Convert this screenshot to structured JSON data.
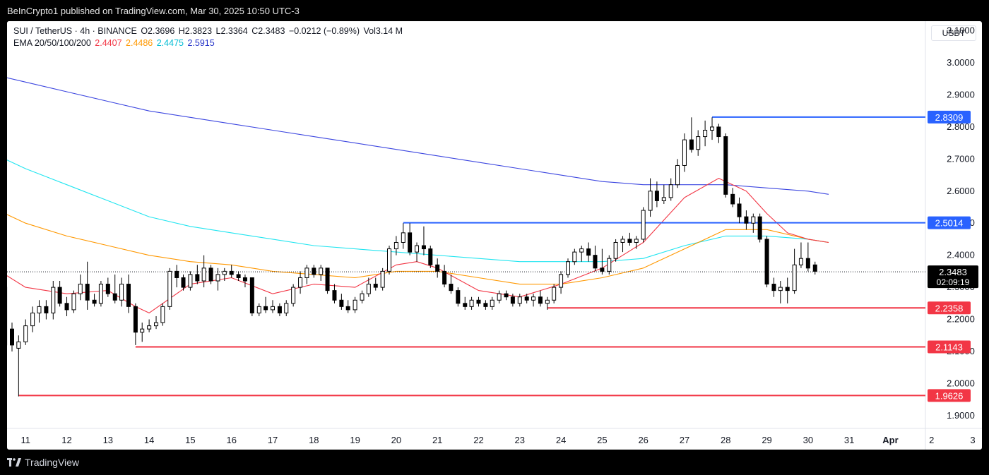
{
  "publisher": "BeInCrypto1 published on TradingView.com, Mar 30, 2025 10:50 UTC-3",
  "header": {
    "symbol": "SUI / TetherUS · 4h · BINANCE",
    "open": "O2.3696",
    "high": "H2.3823",
    "low": "L2.3364",
    "close": "C2.3483",
    "change": "−0.0212 (−0.89%)",
    "volume": "Vol3.14 M",
    "ema_label": "EMA 20/50/100/200",
    "ema_values": [
      "2.4407",
      "2.4486",
      "2.4475",
      "2.5915"
    ]
  },
  "currency": "USDT",
  "footer": {
    "brand": "TradingView"
  },
  "colors": {
    "up": "#ffffff",
    "down": "#000000",
    "ema20": "#f23645",
    "ema50": "#ff9800",
    "ema100": "#22e5f0",
    "ema200": "#3d47e0",
    "support": "#f23645",
    "resistance": "#2962ff",
    "ema_text": [
      "#f23645",
      "#ff9800",
      "#00bcd4",
      "#2432c8"
    ]
  },
  "chart_data": {
    "type": "candlestick",
    "ylim": [
      1.86,
      3.13
    ],
    "xlim_days": [
      10.55,
      32.85
    ],
    "y_ticks": [
      "3.1000",
      "3.0000",
      "2.9000",
      "2.8000",
      "2.7000",
      "2.6000",
      "2.5000",
      "2.4000",
      "2.3000",
      "2.2000",
      "2.1000",
      "2.0000",
      "1.9000"
    ],
    "x_ticks": [
      {
        "label": "11",
        "t": 11
      },
      {
        "label": "12",
        "t": 12
      },
      {
        "label": "13",
        "t": 13
      },
      {
        "label": "14",
        "t": 14
      },
      {
        "label": "15",
        "t": 15
      },
      {
        "label": "16",
        "t": 16
      },
      {
        "label": "17",
        "t": 17
      },
      {
        "label": "18",
        "t": 18
      },
      {
        "label": "19",
        "t": 19
      },
      {
        "label": "20",
        "t": 20
      },
      {
        "label": "21",
        "t": 21
      },
      {
        "label": "22",
        "t": 22
      },
      {
        "label": "23",
        "t": 23
      },
      {
        "label": "24",
        "t": 24
      },
      {
        "label": "25",
        "t": 25
      },
      {
        "label": "26",
        "t": 26
      },
      {
        "label": "27",
        "t": 27
      },
      {
        "label": "28",
        "t": 28
      },
      {
        "label": "29",
        "t": 29
      },
      {
        "label": "30",
        "t": 30
      },
      {
        "label": "31",
        "t": 31
      },
      {
        "label": "Apr",
        "t": 32
      },
      {
        "label": "2",
        "t": 33
      },
      {
        "label": "3",
        "t": 34
      }
    ],
    "levels": [
      {
        "value": 2.8309,
        "label": "2.8309",
        "kind": "resistance",
        "start_day": 27.67
      },
      {
        "value": 2.5014,
        "label": "2.5014",
        "kind": "resistance",
        "start_day": 20.17
      },
      {
        "value": 2.2358,
        "label": "2.2358",
        "kind": "support",
        "start_day": 23.67
      },
      {
        "value": 2.1143,
        "label": "2.1143",
        "kind": "support",
        "start_day": 13.67
      },
      {
        "value": 1.9626,
        "label": "1.9626",
        "kind": "support",
        "start_day": 10.83
      }
    ],
    "last_price": {
      "value": 2.3483,
      "label": "2.3483",
      "countdown": "02:09:19"
    },
    "candles": [
      [
        10.0,
        2.28,
        2.32,
        2.14,
        2.16
      ],
      [
        10.17,
        2.16,
        2.23,
        2.09,
        2.12
      ],
      [
        10.33,
        2.12,
        2.18,
        2.1,
        2.13
      ],
      [
        10.5,
        2.3,
        2.32,
        2.1,
        2.12
      ],
      [
        10.67,
        2.17,
        2.19,
        2.1,
        2.12
      ],
      [
        10.83,
        2.11,
        2.15,
        1.96,
        2.13
      ],
      [
        11.0,
        2.13,
        2.2,
        2.12,
        2.18
      ],
      [
        11.17,
        2.18,
        2.24,
        2.16,
        2.22
      ],
      [
        11.33,
        2.22,
        2.26,
        2.19,
        2.24
      ],
      [
        11.5,
        2.24,
        2.26,
        2.2,
        2.22
      ],
      [
        11.67,
        2.22,
        2.32,
        2.2,
        2.3
      ],
      [
        11.83,
        2.3,
        2.32,
        2.24,
        2.25
      ],
      [
        12.0,
        2.25,
        2.27,
        2.21,
        2.23
      ],
      [
        12.17,
        2.23,
        2.29,
        2.22,
        2.28
      ],
      [
        12.33,
        2.28,
        2.34,
        2.26,
        2.31
      ],
      [
        12.5,
        2.31,
        2.38,
        2.23,
        2.26
      ],
      [
        12.67,
        2.26,
        2.28,
        2.24,
        2.25
      ],
      [
        12.83,
        2.25,
        2.32,
        2.24,
        2.31
      ],
      [
        13.0,
        2.31,
        2.33,
        2.27,
        2.28
      ],
      [
        13.17,
        2.28,
        2.34,
        2.25,
        2.26
      ],
      [
        13.33,
        2.26,
        2.33,
        2.24,
        2.31
      ],
      [
        13.5,
        2.31,
        2.34,
        2.22,
        2.24
      ],
      [
        13.67,
        2.24,
        2.25,
        2.12,
        2.16
      ],
      [
        13.83,
        2.16,
        2.19,
        2.13,
        2.17
      ],
      [
        14.0,
        2.17,
        2.2,
        2.16,
        2.18
      ],
      [
        14.17,
        2.18,
        2.21,
        2.17,
        2.19
      ],
      [
        14.33,
        2.19,
        2.25,
        2.18,
        2.24
      ],
      [
        14.5,
        2.24,
        2.36,
        2.23,
        2.35
      ],
      [
        14.67,
        2.35,
        2.37,
        2.3,
        2.33
      ],
      [
        14.83,
        2.33,
        2.34,
        2.29,
        2.3
      ],
      [
        15.0,
        2.3,
        2.35,
        2.29,
        2.34
      ],
      [
        15.17,
        2.34,
        2.37,
        2.31,
        2.32
      ],
      [
        15.33,
        2.32,
        2.4,
        2.3,
        2.36
      ],
      [
        15.5,
        2.36,
        2.37,
        2.31,
        2.32
      ],
      [
        15.67,
        2.32,
        2.36,
        2.29,
        2.34
      ],
      [
        15.83,
        2.34,
        2.36,
        2.32,
        2.35
      ],
      [
        16.0,
        2.35,
        2.37,
        2.33,
        2.34
      ],
      [
        16.17,
        2.34,
        2.35,
        2.32,
        2.33
      ],
      [
        16.33,
        2.33,
        2.34,
        2.3,
        2.32
      ],
      [
        16.5,
        2.33,
        2.33,
        2.21,
        2.22
      ],
      [
        16.67,
        2.22,
        2.25,
        2.21,
        2.24
      ],
      [
        16.83,
        2.24,
        2.27,
        2.22,
        2.23
      ],
      [
        17.0,
        2.23,
        2.26,
        2.22,
        2.24
      ],
      [
        17.17,
        2.24,
        2.25,
        2.21,
        2.22
      ],
      [
        17.33,
        2.22,
        2.26,
        2.21,
        2.25
      ],
      [
        17.5,
        2.25,
        2.31,
        2.24,
        2.3
      ],
      [
        17.67,
        2.3,
        2.35,
        2.28,
        2.33
      ],
      [
        17.83,
        2.33,
        2.37,
        2.31,
        2.36
      ],
      [
        18.0,
        2.36,
        2.37,
        2.33,
        2.34
      ],
      [
        18.17,
        2.34,
        2.37,
        2.32,
        2.36
      ],
      [
        18.33,
        2.36,
        2.36,
        2.28,
        2.29
      ],
      [
        18.5,
        2.29,
        2.31,
        2.25,
        2.26
      ],
      [
        18.67,
        2.26,
        2.28,
        2.23,
        2.24
      ],
      [
        18.83,
        2.24,
        2.26,
        2.22,
        2.23
      ],
      [
        19.0,
        2.23,
        2.27,
        2.22,
        2.26
      ],
      [
        19.17,
        2.26,
        2.29,
        2.25,
        2.28
      ],
      [
        19.33,
        2.28,
        2.33,
        2.27,
        2.31
      ],
      [
        19.5,
        2.31,
        2.33,
        2.29,
        2.3
      ],
      [
        19.67,
        2.3,
        2.36,
        2.29,
        2.35
      ],
      [
        19.83,
        2.35,
        2.43,
        2.34,
        2.42
      ],
      [
        20.0,
        2.42,
        2.46,
        2.4,
        2.44
      ],
      [
        20.17,
        2.44,
        2.5,
        2.42,
        2.47
      ],
      [
        20.33,
        2.47,
        2.5,
        2.4,
        2.41
      ],
      [
        20.5,
        2.41,
        2.44,
        2.38,
        2.43
      ],
      [
        20.67,
        2.43,
        2.49,
        2.4,
        2.42
      ],
      [
        20.83,
        2.42,
        2.43,
        2.36,
        2.37
      ],
      [
        21.0,
        2.37,
        2.39,
        2.33,
        2.35
      ],
      [
        21.17,
        2.35,
        2.37,
        2.3,
        2.31
      ],
      [
        21.33,
        2.31,
        2.34,
        2.28,
        2.29
      ],
      [
        21.5,
        2.29,
        2.3,
        2.24,
        2.25
      ],
      [
        21.67,
        2.25,
        2.27,
        2.23,
        2.24
      ],
      [
        21.83,
        2.24,
        2.27,
        2.23,
        2.26
      ],
      [
        22.0,
        2.26,
        2.27,
        2.24,
        2.25
      ],
      [
        22.17,
        2.25,
        2.26,
        2.23,
        2.24
      ],
      [
        22.33,
        2.24,
        2.27,
        2.23,
        2.26
      ],
      [
        22.5,
        2.26,
        2.29,
        2.25,
        2.28
      ],
      [
        22.67,
        2.28,
        2.29,
        2.26,
        2.27
      ],
      [
        22.83,
        2.27,
        2.28,
        2.24,
        2.25
      ],
      [
        23.0,
        2.25,
        2.28,
        2.24,
        2.27
      ],
      [
        23.17,
        2.27,
        2.28,
        2.25,
        2.26
      ],
      [
        23.33,
        2.26,
        2.28,
        2.24,
        2.27
      ],
      [
        23.5,
        2.27,
        2.29,
        2.24,
        2.25
      ],
      [
        23.67,
        2.25,
        2.27,
        2.23,
        2.26
      ],
      [
        23.83,
        2.26,
        2.31,
        2.25,
        2.3
      ],
      [
        24.0,
        2.3,
        2.35,
        2.28,
        2.34
      ],
      [
        24.17,
        2.34,
        2.39,
        2.33,
        2.38
      ],
      [
        24.33,
        2.38,
        2.42,
        2.37,
        2.41
      ],
      [
        24.5,
        2.41,
        2.43,
        2.38,
        2.42
      ],
      [
        24.67,
        2.42,
        2.44,
        2.38,
        2.4
      ],
      [
        24.83,
        2.4,
        2.43,
        2.35,
        2.36
      ],
      [
        25.0,
        2.36,
        2.42,
        2.34,
        2.35
      ],
      [
        25.17,
        2.35,
        2.4,
        2.34,
        2.39
      ],
      [
        25.33,
        2.39,
        2.45,
        2.38,
        2.44
      ],
      [
        25.5,
        2.44,
        2.46,
        2.41,
        2.45
      ],
      [
        25.67,
        2.45,
        2.47,
        2.43,
        2.44
      ],
      [
        25.83,
        2.44,
        2.46,
        2.42,
        2.45
      ],
      [
        26.0,
        2.45,
        2.55,
        2.44,
        2.54
      ],
      [
        26.17,
        2.54,
        2.64,
        2.52,
        2.6
      ],
      [
        26.33,
        2.6,
        2.63,
        2.55,
        2.57
      ],
      [
        26.5,
        2.57,
        2.62,
        2.56,
        2.58
      ],
      [
        26.67,
        2.58,
        2.64,
        2.57,
        2.62
      ],
      [
        26.83,
        2.62,
        2.7,
        2.61,
        2.68
      ],
      [
        27.0,
        2.68,
        2.78,
        2.66,
        2.76
      ],
      [
        27.17,
        2.76,
        2.83,
        2.72,
        2.73
      ],
      [
        27.33,
        2.73,
        2.79,
        2.71,
        2.77
      ],
      [
        27.5,
        2.77,
        2.82,
        2.74,
        2.79
      ],
      [
        27.67,
        2.79,
        2.83,
        2.76,
        2.8
      ],
      [
        27.83,
        2.8,
        2.81,
        2.75,
        2.77
      ],
      [
        28.0,
        2.77,
        2.78,
        2.58,
        2.59
      ],
      [
        28.17,
        2.59,
        2.61,
        2.55,
        2.56
      ],
      [
        28.33,
        2.56,
        2.58,
        2.5,
        2.52
      ],
      [
        28.5,
        2.52,
        2.54,
        2.48,
        2.5
      ],
      [
        28.67,
        2.5,
        2.53,
        2.47,
        2.52
      ],
      [
        28.83,
        2.52,
        2.53,
        2.44,
        2.45
      ],
      [
        29.0,
        2.45,
        2.46,
        2.3,
        2.31
      ],
      [
        29.17,
        2.31,
        2.33,
        2.27,
        2.29
      ],
      [
        29.33,
        2.29,
        2.32,
        2.25,
        2.3
      ],
      [
        29.5,
        2.3,
        2.33,
        2.25,
        2.29
      ],
      [
        29.67,
        2.29,
        2.42,
        2.28,
        2.37
      ],
      [
        29.83,
        2.37,
        2.44,
        2.36,
        2.39
      ],
      [
        30.0,
        2.39,
        2.44,
        2.35,
        2.36
      ],
      [
        30.17,
        2.37,
        2.38,
        2.34,
        2.35
      ]
    ],
    "ema200": [
      [
        10.0,
        2.97
      ],
      [
        11.0,
        2.94
      ],
      [
        12.0,
        2.91
      ],
      [
        13.0,
        2.88
      ],
      [
        14.0,
        2.85
      ],
      [
        15.0,
        2.83
      ],
      [
        16.0,
        2.81
      ],
      [
        17.0,
        2.79
      ],
      [
        18.0,
        2.77
      ],
      [
        19.0,
        2.75
      ],
      [
        20.0,
        2.73
      ],
      [
        21.0,
        2.71
      ],
      [
        22.0,
        2.69
      ],
      [
        23.0,
        2.67
      ],
      [
        24.0,
        2.65
      ],
      [
        25.0,
        2.63
      ],
      [
        26.0,
        2.62
      ],
      [
        27.0,
        2.62
      ],
      [
        28.0,
        2.62
      ],
      [
        29.0,
        2.61
      ],
      [
        30.0,
        2.6
      ],
      [
        30.5,
        2.59
      ]
    ],
    "ema100": [
      [
        10.0,
        2.73
      ],
      [
        11.0,
        2.67
      ],
      [
        12.0,
        2.62
      ],
      [
        13.0,
        2.57
      ],
      [
        14.0,
        2.52
      ],
      [
        15.0,
        2.49
      ],
      [
        16.0,
        2.47
      ],
      [
        17.0,
        2.45
      ],
      [
        18.0,
        2.43
      ],
      [
        19.0,
        2.42
      ],
      [
        20.0,
        2.41
      ],
      [
        21.0,
        2.4
      ],
      [
        22.0,
        2.39
      ],
      [
        23.0,
        2.38
      ],
      [
        24.0,
        2.38
      ],
      [
        25.0,
        2.38
      ],
      [
        26.0,
        2.39
      ],
      [
        27.0,
        2.43
      ],
      [
        28.0,
        2.46
      ],
      [
        29.0,
        2.46
      ],
      [
        30.0,
        2.45
      ],
      [
        30.5,
        2.44
      ]
    ],
    "ema50": [
      [
        10.0,
        2.56
      ],
      [
        11.0,
        2.5
      ],
      [
        12.0,
        2.46
      ],
      [
        13.0,
        2.43
      ],
      [
        14.0,
        2.4
      ],
      [
        15.0,
        2.38
      ],
      [
        16.0,
        2.37
      ],
      [
        17.0,
        2.35
      ],
      [
        18.0,
        2.34
      ],
      [
        19.0,
        2.33
      ],
      [
        20.0,
        2.35
      ],
      [
        21.0,
        2.35
      ],
      [
        22.0,
        2.33
      ],
      [
        23.0,
        2.31
      ],
      [
        24.0,
        2.31
      ],
      [
        25.0,
        2.33
      ],
      [
        26.0,
        2.36
      ],
      [
        27.0,
        2.42
      ],
      [
        28.0,
        2.48
      ],
      [
        29.0,
        2.48
      ],
      [
        30.0,
        2.45
      ],
      [
        30.5,
        2.44
      ]
    ],
    "ema20": [
      [
        10.0,
        2.38
      ],
      [
        11.0,
        2.3
      ],
      [
        12.0,
        2.28
      ],
      [
        13.0,
        2.29
      ],
      [
        13.67,
        2.24
      ],
      [
        14.0,
        2.22
      ],
      [
        15.0,
        2.31
      ],
      [
        16.0,
        2.33
      ],
      [
        17.0,
        2.28
      ],
      [
        18.0,
        2.31
      ],
      [
        19.0,
        2.3
      ],
      [
        20.0,
        2.37
      ],
      [
        20.5,
        2.38
      ],
      [
        21.0,
        2.36
      ],
      [
        22.0,
        2.29
      ],
      [
        23.0,
        2.27
      ],
      [
        24.0,
        2.31
      ],
      [
        25.0,
        2.36
      ],
      [
        26.0,
        2.44
      ],
      [
        27.0,
        2.58
      ],
      [
        27.83,
        2.64
      ],
      [
        28.5,
        2.6
      ],
      [
        29.0,
        2.53
      ],
      [
        29.5,
        2.47
      ],
      [
        30.0,
        2.45
      ],
      [
        30.5,
        2.44
      ]
    ]
  }
}
